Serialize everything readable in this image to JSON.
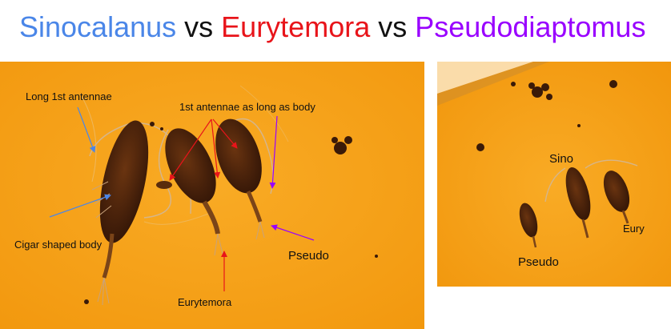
{
  "title": {
    "part1": "Sinocalanus",
    "part2": " vs ",
    "part3": "Eurytemora",
    "part4": " vs ",
    "part5": "Pseudodiaptomus"
  },
  "colors": {
    "sinocalanus": "#4a86e8",
    "eurytemora": "#e8141a",
    "pseudodiaptomus": "#9900ff",
    "background_photo": "#f6a21c"
  },
  "left_photo": {
    "labels": {
      "long_antennae": "Long 1st antennae",
      "antennae_as_long_as_body": "1st antennae as long as body",
      "cigar_body": "Cigar shaped body",
      "eurytemora": "Eurytemora",
      "pseudo": "Pseudo"
    }
  },
  "right_photo": {
    "labels": {
      "sino": "Sino",
      "eury": "Eury",
      "pseudo": "Pseudo"
    }
  }
}
